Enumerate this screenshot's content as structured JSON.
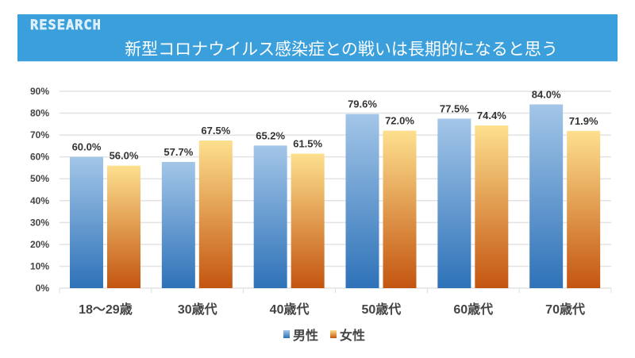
{
  "header": {
    "tag": "RESEARCH",
    "title": "新型コロナウイルス感染症との戦いは長期的になると思う"
  },
  "chart_data": {
    "type": "bar",
    "title": "新型コロナウイルス感染症との戦いは長期的になると思う",
    "categories": [
      "18〜29歳",
      "30歳代",
      "40歳代",
      "50歳代",
      "60歳代",
      "70歳代"
    ],
    "series": [
      {
        "name": "男性",
        "values": [
          60.0,
          57.7,
          65.2,
          79.6,
          77.5,
          84.0
        ],
        "color": "#4a86c6"
      },
      {
        "name": "女性",
        "values": [
          56.0,
          67.5,
          61.5,
          72.0,
          74.4,
          71.9
        ],
        "color": "#d9752a"
      }
    ],
    "yticks": [
      "0%",
      "10%",
      "20%",
      "30%",
      "40%",
      "50%",
      "60%",
      "70%",
      "80%",
      "90%"
    ],
    "ylim": [
      0,
      90
    ],
    "grid": true,
    "legend": "bottom"
  }
}
